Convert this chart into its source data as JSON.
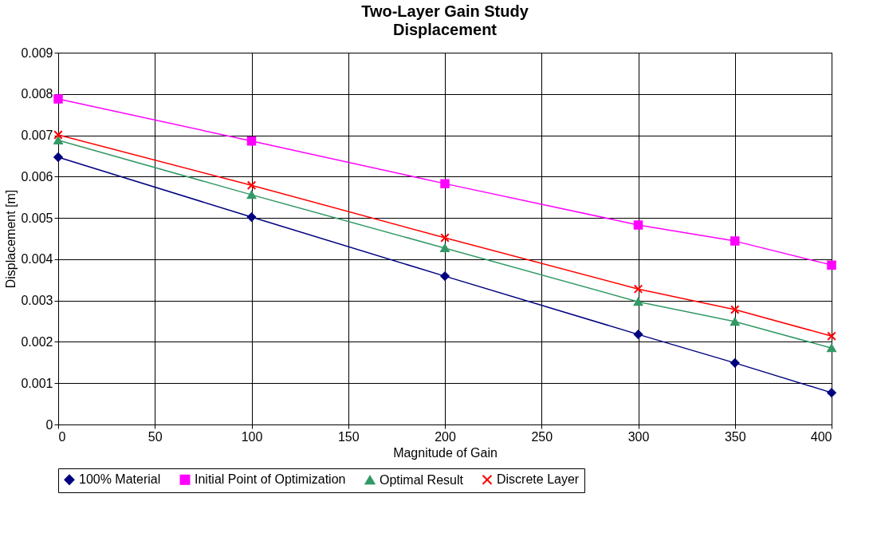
{
  "chart_data": {
    "type": "line",
    "title": "Two-Layer Gain Study",
    "subtitle": "Displacement",
    "xlabel": "Magnitude of Gain",
    "ylabel": "Displacement [m]",
    "x": [
      0,
      100,
      200,
      300,
      350,
      400
    ],
    "series": [
      {
        "name": "100% Material",
        "color": "#000080",
        "marker": "diamond",
        "values": [
          0.00647,
          0.00502,
          0.00359,
          0.00218,
          0.00149,
          0.00077
        ]
      },
      {
        "name": "Initial Point of Optimization",
        "color": "#ff00ff",
        "marker": "square",
        "values": [
          0.00788,
          0.00686,
          0.00583,
          0.00483,
          0.00444,
          0.00386
        ]
      },
      {
        "name": "Optimal Result",
        "color": "#339966",
        "marker": "triangle",
        "values": [
          0.00688,
          0.00556,
          0.00427,
          0.00297,
          0.00249,
          0.00185
        ]
      },
      {
        "name": "Discrete Layer",
        "color": "#ff0000",
        "marker": "cross",
        "values": [
          0.00701,
          0.00579,
          0.00452,
          0.00328,
          0.00278,
          0.00214
        ]
      }
    ],
    "xlim": [
      0,
      400
    ],
    "xticks": [
      0,
      50,
      100,
      150,
      200,
      250,
      300,
      350,
      400
    ],
    "ylim": [
      0,
      0.009
    ],
    "yticks": [
      0,
      0.001,
      0.002,
      0.003,
      0.004,
      0.005,
      0.006,
      0.007,
      0.008,
      0.009
    ],
    "grid": true,
    "legend": "bottom",
    "line_style": "solid"
  }
}
